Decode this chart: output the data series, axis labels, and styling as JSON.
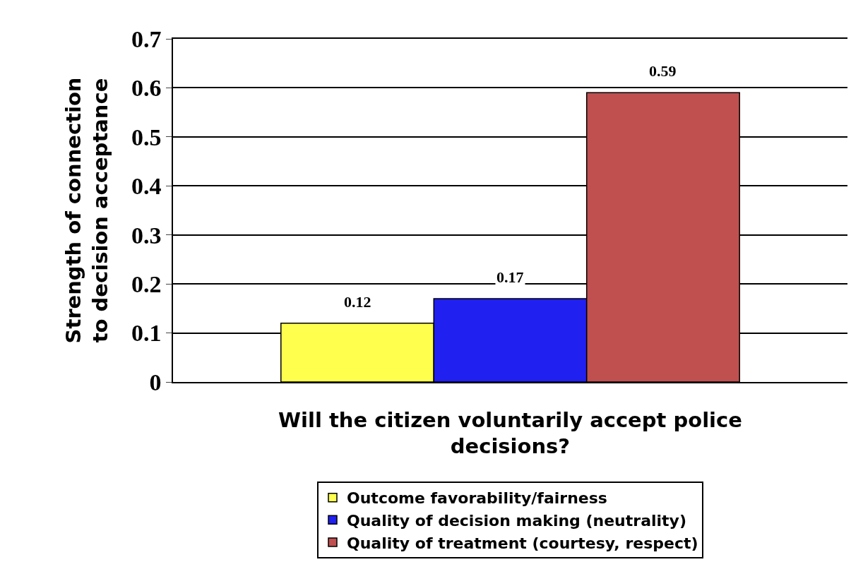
{
  "chart_data": {
    "type": "bar",
    "categories": [
      null
    ],
    "xlabel": "Will the citizen voluntarily accept police\ndecisions?",
    "ylabel": "Strength of connection\nto decision acceptance",
    "series": [
      {
        "name": "Outcome favorability/fairness",
        "color": "#ffff4d",
        "values": [
          0.12
        ]
      },
      {
        "name": "Quality of decision making (neutrality)",
        "color": "#2020f0",
        "values": [
          0.17
        ]
      },
      {
        "name": "Quality of treatment (courtesy, respect)",
        "color": "#c05050",
        "values": [
          0.59
        ]
      }
    ],
    "ylim": [
      0,
      0.7
    ],
    "yticks": [
      0,
      0.1,
      0.2,
      0.3,
      0.4,
      0.5,
      0.6,
      0.7
    ],
    "grid": "y",
    "legend": "bottom",
    "data_labels": true
  }
}
